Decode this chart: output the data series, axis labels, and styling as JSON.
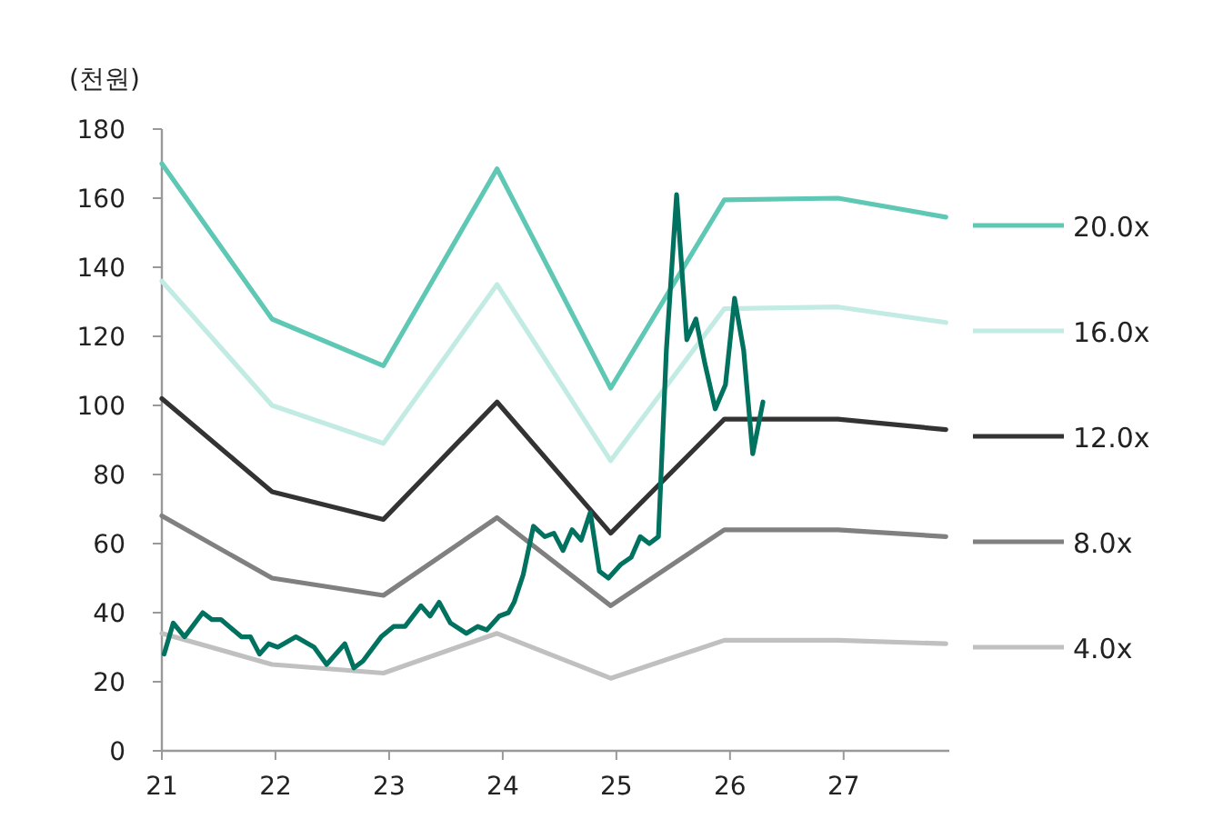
{
  "chart_data": {
    "type": "line",
    "ylabel": "(천원)",
    "xlim": [
      21,
      27.93
    ],
    "ylim": [
      0,
      180
    ],
    "xticks": [
      21,
      22,
      23,
      24,
      25,
      26,
      27
    ],
    "yticks": [
      0,
      20,
      40,
      60,
      80,
      100,
      120,
      140,
      160,
      180
    ],
    "grid": false,
    "legend": "right",
    "marker": "none",
    "line_style": "solid",
    "series": [
      {
        "name": "20.0x",
        "color": "#5ec8b5",
        "x": [
          21.0,
          21.97,
          22.95,
          23.95,
          24.95,
          25.95,
          26.95,
          27.9
        ],
        "values": [
          170,
          125,
          111.5,
          168.5,
          105,
          159.5,
          160,
          154.5
        ]
      },
      {
        "name": "16.0x",
        "color": "#c2ebe3",
        "x": [
          21.0,
          21.97,
          22.95,
          23.95,
          24.95,
          25.95,
          26.95,
          27.9
        ],
        "values": [
          136,
          100,
          89,
          135,
          84,
          128,
          128.5,
          124
        ]
      },
      {
        "name": "12.0x",
        "color": "#333333",
        "x": [
          21.0,
          21.97,
          22.95,
          23.95,
          24.95,
          25.95,
          26.95,
          27.9
        ],
        "values": [
          102,
          75,
          67,
          101,
          63,
          96,
          96,
          93
        ]
      },
      {
        "name": "8.0x",
        "color": "#808080",
        "x": [
          21.0,
          21.97,
          22.95,
          23.95,
          24.95,
          25.95,
          26.95,
          27.9
        ],
        "values": [
          68,
          50,
          45,
          67.5,
          42,
          64,
          64,
          62
        ]
      },
      {
        "name": "4.0x",
        "color": "#c0c0c0",
        "x": [
          21.0,
          21.97,
          22.95,
          23.95,
          24.95,
          25.95,
          26.95,
          27.9
        ],
        "values": [
          34,
          25,
          22.5,
          34,
          21,
          32,
          32,
          31
        ]
      },
      {
        "color": "#00725f",
        "x": [
          21.02,
          21.1,
          21.2,
          21.36,
          21.44,
          21.52,
          21.7,
          21.78,
          21.86,
          21.94,
          22.02,
          22.18,
          22.34,
          22.45,
          22.61,
          22.69,
          22.77,
          22.93,
          23.04,
          23.14,
          23.28,
          23.36,
          23.44,
          23.54,
          23.68,
          23.78,
          23.86,
          23.97,
          24.05,
          24.1,
          24.18,
          24.27,
          24.37,
          24.45,
          24.53,
          24.61,
          24.69,
          24.77,
          24.85,
          24.93,
          25.04,
          25.13,
          25.21,
          25.29,
          25.37,
          25.44,
          25.53,
          25.62,
          25.7,
          25.78,
          25.87,
          25.96,
          26.04,
          26.12,
          26.2,
          26.29
        ],
        "values": [
          28,
          37,
          33,
          40,
          38,
          38,
          33,
          33,
          28,
          31,
          30,
          33,
          30,
          25,
          31,
          24,
          26,
          33,
          36,
          36,
          42,
          39,
          43,
          37,
          34,
          36,
          35,
          39,
          40,
          43,
          51,
          65,
          62,
          63,
          58,
          64,
          61,
          69,
          52,
          50,
          54,
          56,
          62,
          60,
          62,
          116,
          161,
          119,
          125,
          112,
          99,
          106,
          131,
          116,
          86,
          101
        ]
      }
    ]
  }
}
